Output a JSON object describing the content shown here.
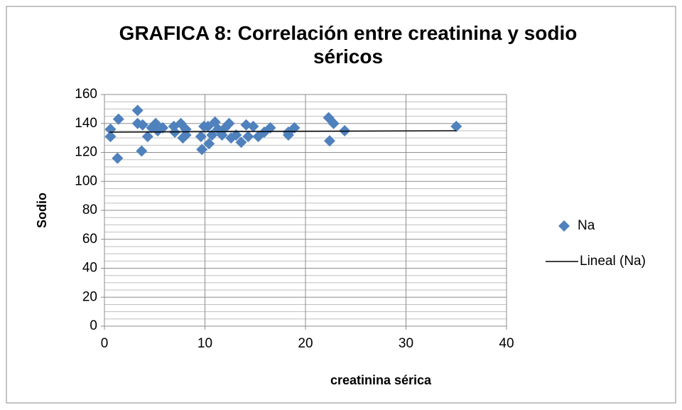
{
  "chart_data": {
    "type": "scatter",
    "title": "GRAFICA 8: Correlación entre creatinina y sodio séricos",
    "x_label": "creatinina sérica",
    "y_label": "Sodio",
    "xlim": [
      0,
      40
    ],
    "xticks": [
      0,
      10,
      20,
      30,
      40
    ],
    "ylim": [
      0,
      160
    ],
    "yticks": [
      0,
      20,
      40,
      60,
      80,
      100,
      120,
      140,
      160
    ],
    "yminorticks": [
      5,
      10,
      15,
      25,
      30,
      35,
      45,
      50,
      55,
      65,
      70,
      75,
      85,
      90,
      95,
      105,
      110,
      115,
      125,
      130,
      135,
      145,
      150,
      155
    ],
    "grid": true,
    "legend": "right",
    "series": [
      {
        "name": "Na",
        "color": "#4f81bd",
        "marker": "diamond",
        "x": [
          0.6,
          0.6,
          1.3,
          1.4,
          3.3,
          3.3,
          3.8,
          3.7,
          4.3,
          4.7,
          5.1,
          5.3,
          5.8,
          6.9,
          7.0,
          7.6,
          7.8,
          8.1,
          8.1,
          9.6,
          9.7,
          9.9,
          10.3,
          10.4,
          10.7,
          11.0,
          11.3,
          11.7,
          12.0,
          12.4,
          12.6,
          13.1,
          13.6,
          14.1,
          14.3,
          14.8,
          15.3,
          15.9,
          16.5,
          18.3,
          18.3,
          18.9,
          22.3,
          22.4,
          22.8,
          23.9,
          35.0
        ],
        "values": [
          136,
          131,
          116,
          143,
          149,
          140,
          139,
          121,
          131,
          137,
          140,
          135,
          137,
          138,
          134,
          140,
          130,
          136,
          132,
          131,
          122,
          138,
          138,
          126,
          132,
          141,
          136,
          132,
          137,
          140,
          130,
          132,
          127,
          139,
          131,
          138,
          131,
          134,
          137,
          134,
          132,
          137,
          144,
          128,
          140,
          135,
          138
        ]
      },
      {
        "name": "Lineal (Na)",
        "color": "#000000",
        "marker": "line",
        "x": [
          0.5,
          35.0
        ],
        "values": [
          134,
          135
        ]
      }
    ]
  }
}
